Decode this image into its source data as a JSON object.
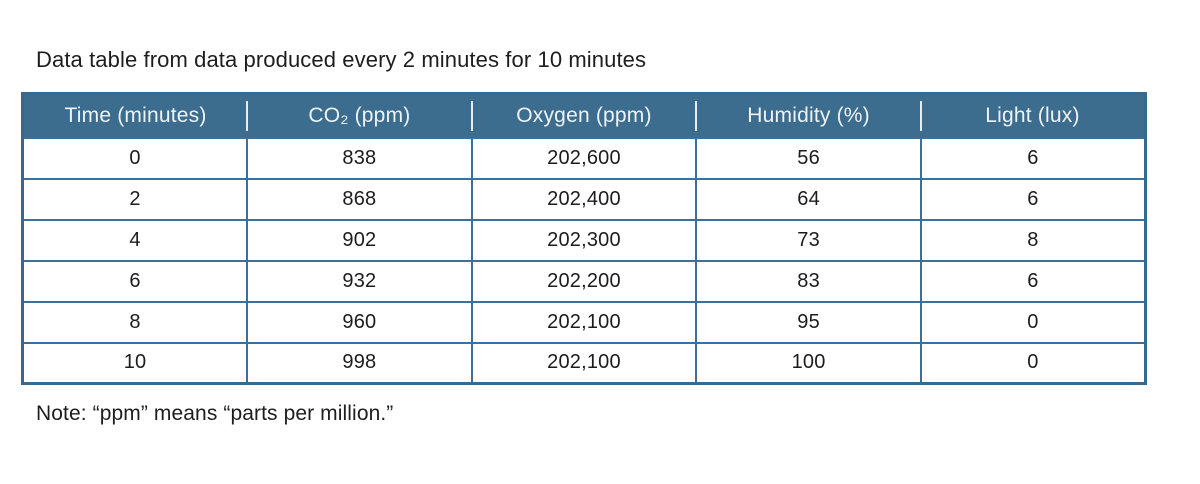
{
  "title": "Data table from data produced every 2 minutes for 10 minutes",
  "note": "Note: “ppm” means “parts per million.”",
  "colors": {
    "header_bg": "#3c6d8e",
    "border": "#3c6f99",
    "outer_border": "#386a8f",
    "header_text": "#eef3f7",
    "body_text": "#1c1c1c",
    "page_bg": "#ffffff"
  },
  "chart_data": {
    "type": "table",
    "title": "Data table from data produced every 2 minutes for 10 minutes",
    "columns": [
      "Time (minutes)",
      "CO₂ (ppm)",
      "Oxygen (ppm)",
      "Humidity (%)",
      "Light (lux)"
    ],
    "rows": [
      [
        "0",
        "838",
        "202,600",
        "56",
        "6"
      ],
      [
        "2",
        "868",
        "202,400",
        "64",
        "6"
      ],
      [
        "4",
        "902",
        "202,300",
        "73",
        "8"
      ],
      [
        "6",
        "932",
        "202,200",
        "83",
        "6"
      ],
      [
        "8",
        "960",
        "202,100",
        "95",
        "0"
      ],
      [
        "10",
        "998",
        "202,100",
        "100",
        "0"
      ]
    ],
    "note": "Note: “ppm” means “parts per million.”",
    "layout": {
      "grid": true,
      "header_style": "filled",
      "num_rows": 6,
      "num_columns": 5
    }
  }
}
